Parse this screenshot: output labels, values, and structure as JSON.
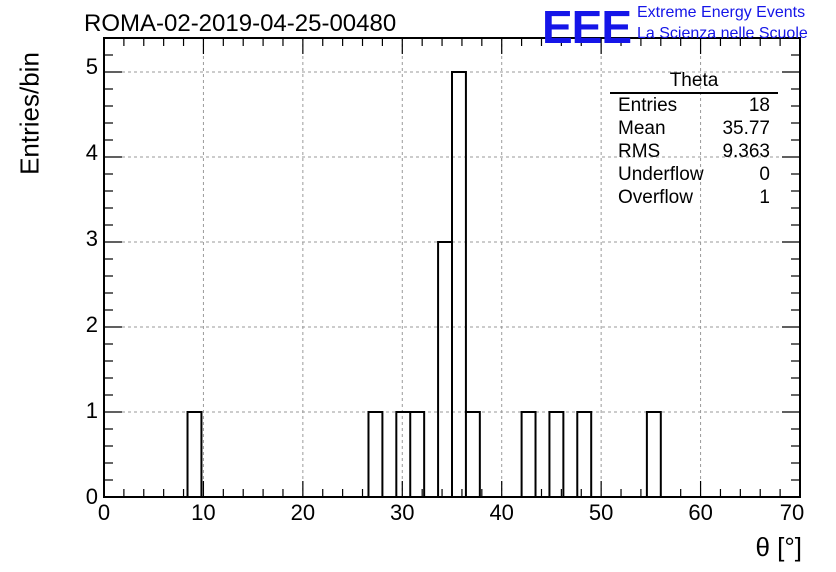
{
  "chart_data": {
    "type": "bar",
    "title": "ROMA-02-2019-04-25-00480",
    "xlabel": "θ [°]",
    "ylabel": "Entries/bin",
    "xlim": [
      0,
      70
    ],
    "ylim": [
      0,
      5.4
    ],
    "xticks": [
      "0",
      "10",
      "20",
      "30",
      "40",
      "50",
      "60",
      "70"
    ],
    "yticks": [
      "0",
      "1",
      "2",
      "3",
      "4",
      "5"
    ],
    "grid": true,
    "bin_width": 1.4,
    "bins": [
      {
        "x0": 8.4,
        "x1": 9.8,
        "count": 1
      },
      {
        "x0": 26.6,
        "x1": 28.0,
        "count": 1
      },
      {
        "x0": 29.4,
        "x1": 30.8,
        "count": 1
      },
      {
        "x0": 30.8,
        "x1": 32.2,
        "count": 1
      },
      {
        "x0": 33.6,
        "x1": 35.0,
        "count": 3
      },
      {
        "x0": 35.0,
        "x1": 36.4,
        "count": 5
      },
      {
        "x0": 36.4,
        "x1": 37.8,
        "count": 1
      },
      {
        "x0": 42.0,
        "x1": 43.4,
        "count": 1
      },
      {
        "x0": 44.8,
        "x1": 46.2,
        "count": 1
      },
      {
        "x0": 47.6,
        "x1": 49.0,
        "count": 1
      },
      {
        "x0": 54.6,
        "x1": 56.0,
        "count": 1
      }
    ]
  },
  "logo": {
    "text": "EEE",
    "color": "#1515e8"
  },
  "org": {
    "line1": "Extreme Energy Events",
    "line2": "La Scienza nelle Scuole"
  },
  "stats": {
    "title": "Theta",
    "rows": [
      {
        "label": "Entries",
        "value": "18"
      },
      {
        "label": "Mean",
        "value": "35.77"
      },
      {
        "label": "RMS",
        "value": "9.363"
      },
      {
        "label": "Underflow",
        "value": "0"
      },
      {
        "label": "Overflow",
        "value": "1"
      }
    ]
  }
}
